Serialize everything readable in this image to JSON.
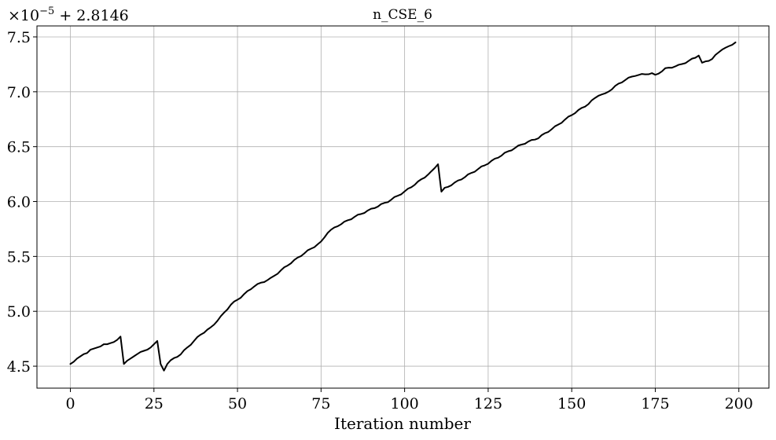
{
  "chart_data": {
    "type": "line",
    "title": "n_CSE_6",
    "xlabel": "Iteration number",
    "ylabel": "",
    "offset_text": {
      "mantissa": "×10",
      "exponent": "−5",
      "suffix": " + 2.8146"
    },
    "xlim": [
      -10,
      209
    ],
    "ylim": [
      4.3,
      7.6
    ],
    "xticks": [
      0,
      25,
      50,
      75,
      100,
      125,
      150,
      175,
      200
    ],
    "xtick_labels": [
      "0",
      "25",
      "50",
      "75",
      "100",
      "125",
      "150",
      "175",
      "200"
    ],
    "yticks": [
      4.5,
      5.0,
      5.5,
      6.0,
      6.5,
      7.0,
      7.5
    ],
    "ytick_labels": [
      "4.5",
      "5.0",
      "5.5",
      "6.0",
      "6.5",
      "7.0",
      "7.5"
    ],
    "grid": true,
    "line_color": "#000000",
    "anchors": [
      [
        0,
        4.52
      ],
      [
        1,
        4.54
      ],
      [
        2,
        4.57
      ],
      [
        3,
        4.59
      ],
      [
        4,
        4.61
      ],
      [
        5,
        4.62
      ],
      [
        6,
        4.65
      ],
      [
        7,
        4.66
      ],
      [
        8,
        4.67
      ],
      [
        9,
        4.68
      ],
      [
        10,
        4.7
      ],
      [
        11,
        4.7
      ],
      [
        12,
        4.71
      ],
      [
        13,
        4.72
      ],
      [
        14,
        4.74
      ],
      [
        15,
        4.77
      ],
      [
        16,
        4.52
      ],
      [
        17,
        4.55
      ],
      [
        18,
        4.57
      ],
      [
        19,
        4.59
      ],
      [
        20,
        4.61
      ],
      [
        21,
        4.63
      ],
      [
        22,
        4.64
      ],
      [
        23,
        4.65
      ],
      [
        24,
        4.67
      ],
      [
        25,
        4.7
      ],
      [
        26,
        4.73
      ],
      [
        27,
        4.52
      ],
      [
        28,
        4.46
      ],
      [
        29,
        4.52
      ],
      [
        30,
        4.55
      ],
      [
        33,
        4.61
      ],
      [
        36,
        4.7
      ],
      [
        39,
        4.79
      ],
      [
        42,
        4.85
      ],
      [
        45,
        4.95
      ],
      [
        48,
        5.06
      ],
      [
        51,
        5.13
      ],
      [
        55,
        5.23
      ],
      [
        60,
        5.3
      ],
      [
        65,
        5.42
      ],
      [
        70,
        5.53
      ],
      [
        75,
        5.63
      ],
      [
        77,
        5.72
      ],
      [
        80,
        5.78
      ],
      [
        85,
        5.86
      ],
      [
        90,
        5.93
      ],
      [
        95,
        6.0
      ],
      [
        100,
        6.09
      ],
      [
        105,
        6.2
      ],
      [
        108,
        6.27
      ],
      [
        110,
        6.34
      ],
      [
        111,
        6.09
      ],
      [
        112,
        6.12
      ],
      [
        115,
        6.17
      ],
      [
        120,
        6.26
      ],
      [
        125,
        6.35
      ],
      [
        130,
        6.44
      ],
      [
        135,
        6.52
      ],
      [
        140,
        6.58
      ],
      [
        145,
        6.68
      ],
      [
        150,
        6.79
      ],
      [
        155,
        6.89
      ],
      [
        158,
        6.97
      ],
      [
        160,
        6.98
      ],
      [
        163,
        7.05
      ],
      [
        166,
        7.11
      ],
      [
        169,
        7.15
      ],
      [
        172,
        7.16
      ],
      [
        174,
        7.17
      ],
      [
        175,
        7.15
      ],
      [
        178,
        7.21
      ],
      [
        182,
        7.24
      ],
      [
        185,
        7.28
      ],
      [
        188,
        7.33
      ],
      [
        189,
        7.26
      ],
      [
        192,
        7.3
      ],
      [
        195,
        7.39
      ],
      [
        197,
        7.41
      ],
      [
        199,
        7.45
      ]
    ]
  }
}
